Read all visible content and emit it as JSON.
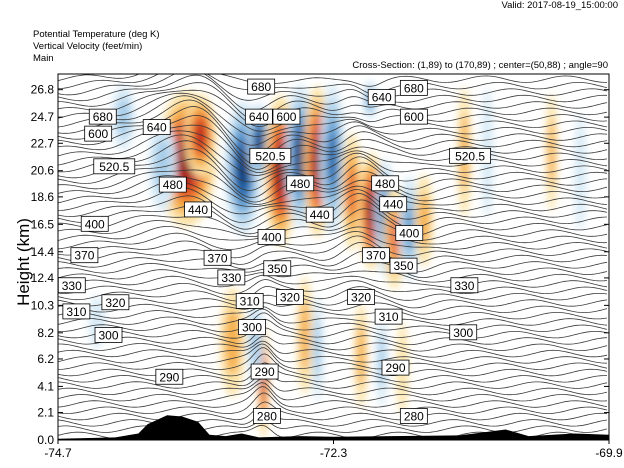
{
  "header": {
    "valid": "Valid: 2017-08-19_15:00:00",
    "var1": "Potential Temperature   (deg K)",
    "var2": "Vertical Velocity   (feet/min)",
    "var3": "Main",
    "cross_section": "Cross-Section: (1,89) to (170,89) ; center=(50,88) ; angle=90"
  },
  "chart_data": {
    "type": "heatmap",
    "title": "",
    "xlabel": "",
    "ylabel": "Height (km)",
    "xlim": [
      -74.7,
      -69.9
    ],
    "ylim": [
      0.0,
      28.0
    ],
    "x_ticks": [
      "-74.7",
      "-72.3",
      "-69.9"
    ],
    "y_ticks": [
      "0.0",
      "2.1",
      "4.1",
      "6.2",
      "8.2",
      "10.3",
      "12.4",
      "14.4",
      "16.5",
      "18.6",
      "20.6",
      "22.7",
      "24.7",
      "26.8"
    ],
    "contour_variable": "Potential Temperature (deg K)",
    "shaded_variable": "Vertical Velocity (feet/min)",
    "contour_labels": [
      {
        "text": "680",
        "x": -74.31,
        "y": 24.7
      },
      {
        "text": "640",
        "x": -73.84,
        "y": 23.9
      },
      {
        "text": "600",
        "x": -74.35,
        "y": 23.4
      },
      {
        "text": "520.5",
        "x": -74.21,
        "y": 20.9
      },
      {
        "text": "480",
        "x": -73.7,
        "y": 19.5
      },
      {
        "text": "440",
        "x": -73.48,
        "y": 17.6
      },
      {
        "text": "400",
        "x": -74.38,
        "y": 16.5
      },
      {
        "text": "370",
        "x": -74.47,
        "y": 14.1
      },
      {
        "text": "370",
        "x": -73.31,
        "y": 13.9
      },
      {
        "text": "330",
        "x": -74.58,
        "y": 11.8
      },
      {
        "text": "330",
        "x": -73.19,
        "y": 12.4
      },
      {
        "text": "320",
        "x": -74.2,
        "y": 10.5
      },
      {
        "text": "310",
        "x": -74.54,
        "y": 9.8
      },
      {
        "text": "310",
        "x": -73.03,
        "y": 10.6
      },
      {
        "text": "300",
        "x": -74.26,
        "y": 8.0
      },
      {
        "text": "290",
        "x": -73.73,
        "y": 4.8
      },
      {
        "text": "680",
        "x": -72.93,
        "y": 27.0
      },
      {
        "text": "640",
        "x": -72.95,
        "y": 24.7
      },
      {
        "text": "600",
        "x": -72.71,
        "y": 24.7
      },
      {
        "text": "520.5",
        "x": -72.85,
        "y": 21.7
      },
      {
        "text": "480",
        "x": -72.59,
        "y": 19.6
      },
      {
        "text": "440",
        "x": -72.42,
        "y": 17.2
      },
      {
        "text": "400",
        "x": -72.84,
        "y": 15.5
      },
      {
        "text": "350",
        "x": -72.79,
        "y": 13.1
      },
      {
        "text": "320",
        "x": -72.68,
        "y": 10.9
      },
      {
        "text": "300",
        "x": -73.01,
        "y": 8.6
      },
      {
        "text": "290",
        "x": -72.9,
        "y": 5.2
      },
      {
        "text": "280",
        "x": -72.88,
        "y": 1.8
      },
      {
        "text": "640",
        "x": -71.88,
        "y": 26.2
      },
      {
        "text": "680",
        "x": -71.6,
        "y": 26.9
      },
      {
        "text": "600",
        "x": -71.6,
        "y": 24.7
      },
      {
        "text": "520.5",
        "x": -71.11,
        "y": 21.7
      },
      {
        "text": "480",
        "x": -71.85,
        "y": 19.6
      },
      {
        "text": "440",
        "x": -71.78,
        "y": 18.0
      },
      {
        "text": "400",
        "x": -71.64,
        "y": 15.8
      },
      {
        "text": "370",
        "x": -71.93,
        "y": 14.1
      },
      {
        "text": "350",
        "x": -71.69,
        "y": 13.3
      },
      {
        "text": "320",
        "x": -72.06,
        "y": 10.9
      },
      {
        "text": "330",
        "x": -71.16,
        "y": 11.8
      },
      {
        "text": "310",
        "x": -71.82,
        "y": 9.4
      },
      {
        "text": "300",
        "x": -71.17,
        "y": 8.2
      },
      {
        "text": "290",
        "x": -71.76,
        "y": 5.5
      },
      {
        "text": "280",
        "x": -71.6,
        "y": 1.8
      }
    ],
    "velocity_features": [
      {
        "x": -73.58,
        "y": 21.5,
        "rx": 0.26,
        "ry": 5.2,
        "sign": "up",
        "strength": 1.0
      },
      {
        "x": -73.46,
        "y": 23.3,
        "rx": 0.14,
        "ry": 3.2,
        "sign": "up",
        "strength": 0.8
      },
      {
        "x": -73.79,
        "y": 21.0,
        "rx": 0.12,
        "ry": 3.5,
        "sign": "down",
        "strength": 0.4
      },
      {
        "x": -73.09,
        "y": 20.8,
        "rx": 0.16,
        "ry": 5.2,
        "sign": "down",
        "strength": 1.0
      },
      {
        "x": -72.95,
        "y": 22.8,
        "rx": 0.1,
        "ry": 3.0,
        "sign": "down",
        "strength": 0.9
      },
      {
        "x": -72.76,
        "y": 20.6,
        "rx": 0.14,
        "ry": 5.8,
        "sign": "up",
        "strength": 0.95
      },
      {
        "x": -72.59,
        "y": 21.7,
        "rx": 0.13,
        "ry": 5.5,
        "sign": "down",
        "strength": 0.9
      },
      {
        "x": -72.44,
        "y": 21.3,
        "rx": 0.12,
        "ry": 5.8,
        "sign": "up",
        "strength": 0.9
      },
      {
        "x": -72.31,
        "y": 21.5,
        "rx": 0.11,
        "ry": 5.8,
        "sign": "down",
        "strength": 0.8
      },
      {
        "x": -72.14,
        "y": 19.0,
        "rx": 0.09,
        "ry": 4.5,
        "sign": "up",
        "strength": 0.6
      },
      {
        "x": -71.97,
        "y": 17.5,
        "rx": 0.11,
        "ry": 4.5,
        "sign": "up",
        "strength": 0.95
      },
      {
        "x": -71.85,
        "y": 17.0,
        "rx": 0.09,
        "ry": 4.5,
        "sign": "down",
        "strength": 0.8
      },
      {
        "x": -71.77,
        "y": 15.5,
        "rx": 0.09,
        "ry": 4.0,
        "sign": "up",
        "strength": 0.6
      },
      {
        "x": -71.64,
        "y": 16.2,
        "rx": 0.09,
        "ry": 4.0,
        "sign": "down",
        "strength": 0.5
      },
      {
        "x": -71.51,
        "y": 16.8,
        "rx": 0.08,
        "ry": 3.5,
        "sign": "up",
        "strength": 0.35
      },
      {
        "x": -72.91,
        "y": 4.5,
        "rx": 0.05,
        "ry": 4.5,
        "sign": "up",
        "strength": 0.85
      },
      {
        "x": -72.98,
        "y": 7.5,
        "rx": 0.07,
        "ry": 3.5,
        "sign": "down",
        "strength": 0.4
      },
      {
        "x": -73.18,
        "y": 7.5,
        "rx": 0.11,
        "ry": 4.2,
        "sign": "up",
        "strength": 0.4
      },
      {
        "x": -72.55,
        "y": 8.0,
        "rx": 0.07,
        "ry": 4.5,
        "sign": "up",
        "strength": 0.4
      },
      {
        "x": -72.44,
        "y": 7.0,
        "rx": 0.05,
        "ry": 4.0,
        "sign": "down",
        "strength": 0.3
      },
      {
        "x": -72.06,
        "y": 6.5,
        "rx": 0.06,
        "ry": 4.0,
        "sign": "up",
        "strength": 0.35
      },
      {
        "x": -71.88,
        "y": 6.0,
        "rx": 0.05,
        "ry": 3.5,
        "sign": "down",
        "strength": 0.3
      },
      {
        "x": -71.7,
        "y": 5.5,
        "rx": 0.05,
        "ry": 3.5,
        "sign": "up",
        "strength": 0.25
      },
      {
        "x": -74.13,
        "y": 24.7,
        "rx": 0.1,
        "ry": 2.5,
        "sign": "down",
        "strength": 0.3
      },
      {
        "x": -74.36,
        "y": 9.0,
        "rx": 0.07,
        "ry": 2.0,
        "sign": "down",
        "strength": 0.25
      },
      {
        "x": -71.16,
        "y": 22.0,
        "rx": 0.06,
        "ry": 5.0,
        "sign": "up",
        "strength": 0.3
      },
      {
        "x": -70.96,
        "y": 22.0,
        "rx": 0.05,
        "ry": 5.0,
        "sign": "down",
        "strength": 0.25
      },
      {
        "x": -70.4,
        "y": 22.0,
        "rx": 0.05,
        "ry": 4.5,
        "sign": "up",
        "strength": 0.3
      },
      {
        "x": -70.15,
        "y": 20.5,
        "rx": 0.05,
        "ry": 4.5,
        "sign": "down",
        "strength": 0.25
      },
      {
        "x": -71.98,
        "y": 26.0,
        "rx": 0.06,
        "ry": 1.5,
        "sign": "down",
        "strength": 0.5
      }
    ],
    "grid": false,
    "colors": {
      "updraft": "#c0271d",
      "downdraft": "#15488e",
      "terrain": "#000000"
    }
  }
}
